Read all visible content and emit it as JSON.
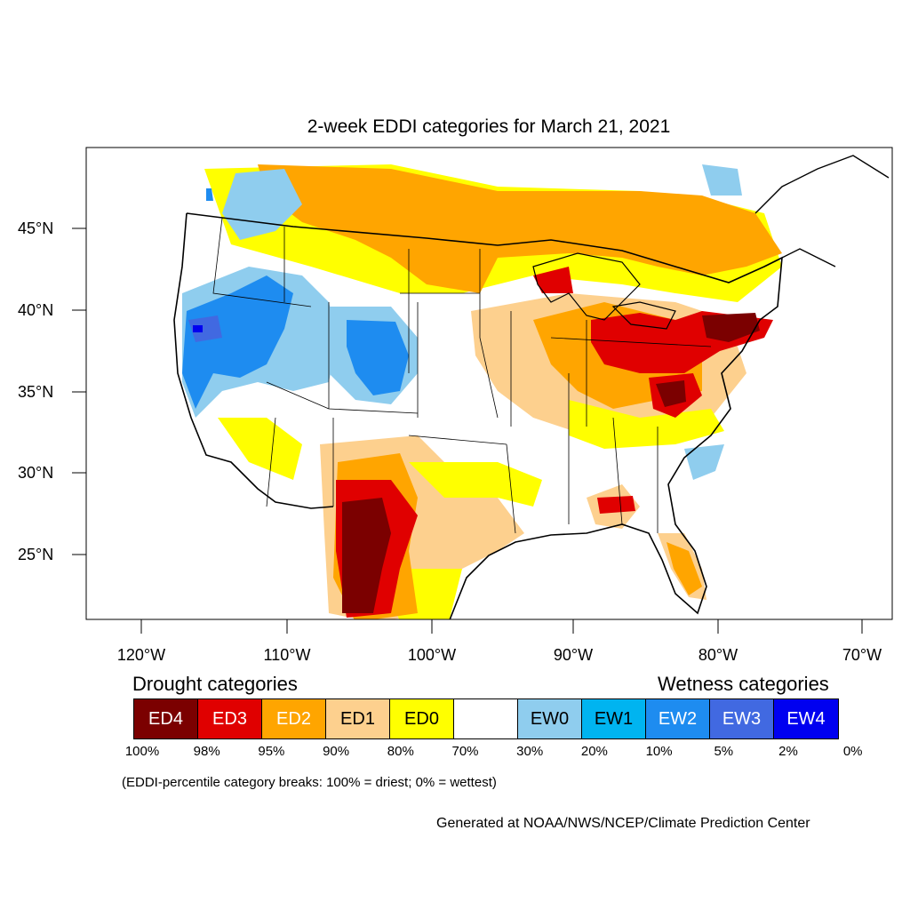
{
  "title": "2-week EDDI categories for March 21, 2021",
  "lat_labels": [
    "45°N",
    "40°N",
    "35°N",
    "30°N",
    "25°N"
  ],
  "lon_labels": [
    "120°W",
    "110°W",
    "100°W",
    "90°W",
    "80°W",
    "70°W"
  ],
  "legend": {
    "drought_heading": "Drought categories",
    "wetness_heading": "Wetness categories",
    "categories": [
      {
        "label": "ED4",
        "color": "#7b0000",
        "text_color": "#ffffff"
      },
      {
        "label": "ED3",
        "color": "#e00000",
        "text_color": "#ffffff"
      },
      {
        "label": "ED2",
        "color": "#ffa500",
        "text_color": "#ffffff"
      },
      {
        "label": "ED1",
        "color": "#fdd08e",
        "text_color": "#000000"
      },
      {
        "label": "ED0",
        "color": "#ffff00",
        "text_color": "#000000"
      },
      {
        "label": "",
        "color": "#ffffff",
        "text_color": "#000000"
      },
      {
        "label": "EW0",
        "color": "#8fcdee",
        "text_color": "#000000"
      },
      {
        "label": "EW1",
        "color": "#00b4f0",
        "text_color": "#000000"
      },
      {
        "label": "EW2",
        "color": "#1e8cf0",
        "text_color": "#ffffff"
      },
      {
        "label": "EW3",
        "color": "#4169e1",
        "text_color": "#ffffff"
      },
      {
        "label": "EW4",
        "color": "#0000f0",
        "text_color": "#ffffff"
      }
    ],
    "breaks": [
      "100%",
      "98%",
      "95%",
      "90%",
      "80%",
      "70%",
      "30%",
      "20%",
      "10%",
      "5%",
      "2%",
      "0%"
    ]
  },
  "footnote": "(EDDI-percentile category breaks: 100% = driest; 0% = wettest)",
  "credit": "Generated at NOAA/NWS/NCEP/Climate Prediction Center"
}
